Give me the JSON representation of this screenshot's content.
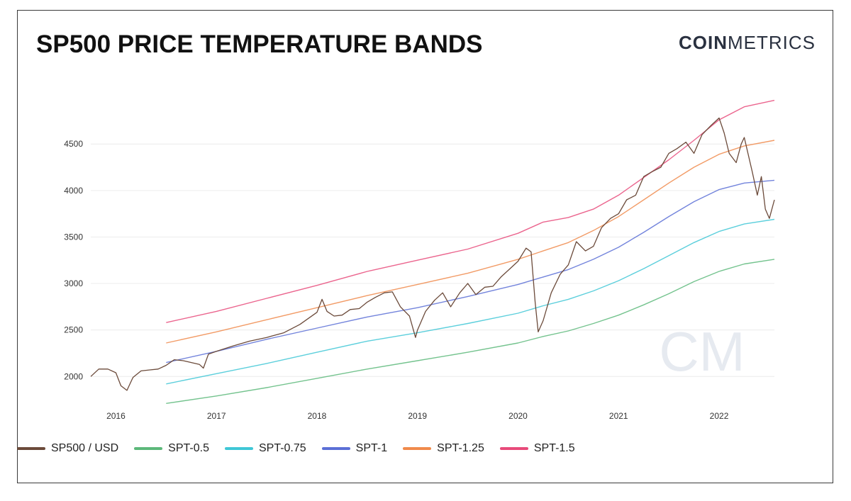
{
  "title": "SP500 PRICE TEMPERATURE BANDS",
  "brand": {
    "bold": "COIN",
    "light": "METRICS",
    "watermark": "CM"
  },
  "chart_data": {
    "type": "line",
    "title": "SP500 PRICE TEMPERATURE BANDS",
    "xlabel": "",
    "ylabel": "",
    "xlim": [
      2015.75,
      2022.55
    ],
    "ylim": [
      1720,
      5020
    ],
    "x_ticks": [
      "2016",
      "2017",
      "2018",
      "2019",
      "2020",
      "2021",
      "2022"
    ],
    "y_ticks": [
      "2000",
      "2500",
      "3000",
      "3500",
      "4000",
      "4500"
    ],
    "grid": "horizontal",
    "legend_position": "bottom-left",
    "series": [
      {
        "name": "SP500 / USD",
        "color": "#6b4a3a",
        "x": [
          2015.75,
          2015.83,
          2015.92,
          2016.0,
          2016.05,
          2016.11,
          2016.17,
          2016.25,
          2016.33,
          2016.42,
          2016.5,
          2016.58,
          2016.67,
          2016.75,
          2016.83,
          2016.87,
          2016.92,
          2017.0,
          2017.17,
          2017.33,
          2017.5,
          2017.67,
          2017.83,
          2018.0,
          2018.05,
          2018.1,
          2018.17,
          2018.25,
          2018.33,
          2018.42,
          2018.5,
          2018.58,
          2018.67,
          2018.75,
          2018.83,
          2018.92,
          2018.98,
          2019.0,
          2019.08,
          2019.17,
          2019.25,
          2019.33,
          2019.42,
          2019.5,
          2019.58,
          2019.67,
          2019.75,
          2019.83,
          2019.92,
          2020.0,
          2020.08,
          2020.13,
          2020.17,
          2020.2,
          2020.25,
          2020.33,
          2020.42,
          2020.5,
          2020.58,
          2020.67,
          2020.75,
          2020.83,
          2020.92,
          2021.0,
          2021.08,
          2021.17,
          2021.25,
          2021.33,
          2021.42,
          2021.5,
          2021.58,
          2021.67,
          2021.75,
          2021.83,
          2021.92,
          2022.0,
          2022.05,
          2022.1,
          2022.17,
          2022.22,
          2022.25,
          2022.33,
          2022.38,
          2022.42,
          2022.46,
          2022.5,
          2022.55
        ],
        "values": [
          2000,
          2080,
          2080,
          2040,
          1900,
          1850,
          1990,
          2060,
          2070,
          2080,
          2120,
          2180,
          2170,
          2150,
          2130,
          2090,
          2240,
          2270,
          2330,
          2380,
          2420,
          2470,
          2560,
          2690,
          2830,
          2700,
          2650,
          2660,
          2720,
          2730,
          2800,
          2850,
          2900,
          2910,
          2750,
          2650,
          2420,
          2500,
          2700,
          2820,
          2900,
          2750,
          2900,
          3000,
          2880,
          2960,
          2970,
          3070,
          3160,
          3240,
          3380,
          3340,
          2800,
          2480,
          2600,
          2900,
          3100,
          3200,
          3450,
          3350,
          3400,
          3600,
          3700,
          3750,
          3900,
          3950,
          4150,
          4200,
          4250,
          4400,
          4450,
          4520,
          4400,
          4600,
          4700,
          4780,
          4620,
          4400,
          4300,
          4500,
          4570,
          4200,
          3950,
          4150,
          3800,
          3700,
          3900
        ]
      },
      {
        "name": "SPT-0.5",
        "color": "#5cb87a",
        "x": [
          2016.5,
          2017.0,
          2017.5,
          2018.0,
          2018.5,
          2019.0,
          2019.5,
          2020.0,
          2020.25,
          2020.5,
          2020.75,
          2021.0,
          2021.25,
          2021.5,
          2021.75,
          2022.0,
          2022.25,
          2022.55
        ],
        "values": [
          1710,
          1790,
          1880,
          1980,
          2080,
          2170,
          2260,
          2360,
          2430,
          2490,
          2570,
          2660,
          2770,
          2890,
          3020,
          3130,
          3210,
          3260
        ]
      },
      {
        "name": "SPT-0.75",
        "color": "#3fc7d6",
        "x": [
          2016.5,
          2017.0,
          2017.5,
          2018.0,
          2018.5,
          2019.0,
          2019.5,
          2020.0,
          2020.25,
          2020.5,
          2020.75,
          2021.0,
          2021.25,
          2021.5,
          2021.75,
          2022.0,
          2022.25,
          2022.55
        ],
        "values": [
          1920,
          2030,
          2140,
          2260,
          2380,
          2470,
          2570,
          2680,
          2760,
          2830,
          2920,
          3030,
          3160,
          3300,
          3440,
          3560,
          3640,
          3690
        ]
      },
      {
        "name": "SPT-1",
        "color": "#5b6fd6",
        "x": [
          2016.5,
          2017.0,
          2017.5,
          2018.0,
          2018.5,
          2019.0,
          2019.5,
          2020.0,
          2020.25,
          2020.5,
          2020.75,
          2021.0,
          2021.25,
          2021.5,
          2021.75,
          2022.0,
          2022.25,
          2022.55
        ],
        "values": [
          2150,
          2270,
          2400,
          2520,
          2640,
          2740,
          2860,
          2990,
          3070,
          3150,
          3260,
          3390,
          3550,
          3720,
          3880,
          4010,
          4080,
          4110
        ]
      },
      {
        "name": "SPT-1.25",
        "color": "#f08a4b",
        "x": [
          2016.5,
          2017.0,
          2017.5,
          2018.0,
          2018.5,
          2019.0,
          2019.5,
          2020.0,
          2020.25,
          2020.5,
          2020.75,
          2021.0,
          2021.25,
          2021.5,
          2021.75,
          2022.0,
          2022.25,
          2022.55
        ],
        "values": [
          2360,
          2480,
          2610,
          2740,
          2870,
          2990,
          3110,
          3260,
          3350,
          3440,
          3570,
          3720,
          3900,
          4080,
          4250,
          4390,
          4480,
          4540
        ]
      },
      {
        "name": "SPT-1.5",
        "color": "#e84a7a",
        "x": [
          2016.5,
          2017.0,
          2017.5,
          2018.0,
          2018.5,
          2019.0,
          2019.5,
          2020.0,
          2020.25,
          2020.5,
          2020.75,
          2021.0,
          2021.25,
          2021.5,
          2021.75,
          2022.0,
          2022.25,
          2022.55
        ],
        "values": [
          2580,
          2700,
          2840,
          2980,
          3130,
          3250,
          3370,
          3540,
          3660,
          3710,
          3800,
          3950,
          4140,
          4330,
          4540,
          4760,
          4900,
          4970
        ]
      }
    ]
  }
}
